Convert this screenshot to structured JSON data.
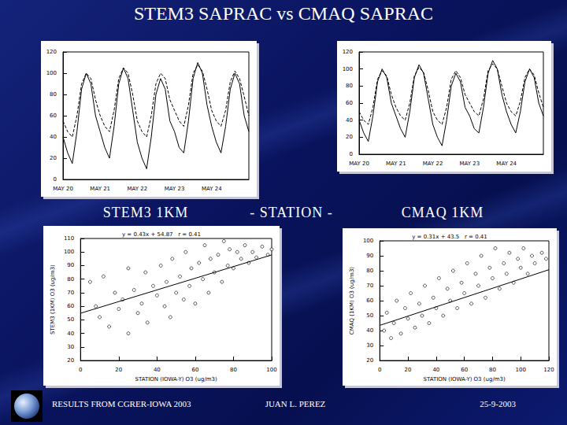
{
  "slide": {
    "title": "STEM3 SAPRAC vs CMAQ SAPRAC",
    "labels": [
      "STEM3 1KM",
      "- STATION -",
      "CMAQ 1KM"
    ],
    "footer": [
      "RESULTS FROM CGRER-IOWA 2003",
      "JUAN L. PEREZ",
      "25-9-2003"
    ]
  },
  "chart_data": [
    {
      "type": "line",
      "categories": [
        "MAY 20",
        null,
        null,
        null,
        null,
        null,
        null,
        null,
        "MAY 21",
        null,
        null,
        null,
        null,
        null,
        null,
        null,
        "MAY 22",
        null,
        null,
        null,
        null,
        null,
        null,
        null,
        "MAY 23",
        null,
        null,
        null,
        null,
        null,
        null,
        null,
        "MAY 24",
        null,
        null,
        null,
        null,
        null,
        null,
        null,
        null
      ],
      "series": [
        {
          "color": "#000000",
          "line_style": "solid",
          "values": [
            40,
            25,
            15,
            45,
            85,
            100,
            90,
            60,
            45,
            30,
            20,
            50,
            90,
            105,
            95,
            65,
            35,
            20,
            10,
            40,
            80,
            95,
            85,
            55,
            45,
            30,
            25,
            55,
            95,
            110,
            100,
            70,
            50,
            35,
            25,
            50,
            85,
            100,
            90,
            60,
            45
          ]
        },
        {
          "color": "#000000",
          "line_style": "dashed",
          "values": [
            55,
            45,
            40,
            60,
            90,
            100,
            95,
            75,
            60,
            50,
            45,
            65,
            95,
            105,
            100,
            80,
            55,
            45,
            40,
            60,
            90,
            100,
            95,
            75,
            65,
            55,
            50,
            70,
            100,
            108,
            102,
            85,
            65,
            55,
            50,
            65,
            92,
            102,
            95,
            78,
            60
          ]
        }
      ],
      "ylim": [
        0,
        120
      ],
      "yticks": [
        0,
        20,
        40,
        60,
        80,
        100,
        120
      ],
      "grid": false
    },
    {
      "type": "line",
      "categories": [
        "MAY 20",
        null,
        null,
        null,
        null,
        null,
        null,
        null,
        "MAY 21",
        null,
        null,
        null,
        null,
        null,
        null,
        null,
        "MAY 22",
        null,
        null,
        null,
        null,
        null,
        null,
        null,
        "MAY 23",
        null,
        null,
        null,
        null,
        null,
        null,
        null,
        "MAY 24",
        null,
        null,
        null,
        null,
        null,
        null,
        null,
        null
      ],
      "series": [
        {
          "color": "#000000",
          "line_style": "solid",
          "values": [
            40,
            25,
            15,
            45,
            85,
            100,
            90,
            60,
            45,
            30,
            20,
            50,
            90,
            105,
            95,
            65,
            35,
            20,
            10,
            40,
            80,
            95,
            85,
            55,
            45,
            30,
            25,
            55,
            95,
            110,
            100,
            70,
            50,
            35,
            25,
            50,
            85,
            100,
            90,
            60,
            45
          ]
        },
        {
          "color": "#000000",
          "line_style": "dashed",
          "values": [
            50,
            40,
            35,
            55,
            88,
            98,
            92,
            70,
            55,
            45,
            40,
            60,
            92,
            102,
            96,
            75,
            50,
            40,
            35,
            55,
            88,
            98,
            90,
            70,
            60,
            50,
            45,
            65,
            98,
            106,
            100,
            80,
            60,
            50,
            45,
            62,
            90,
            100,
            93,
            72,
            55
          ]
        }
      ],
      "ylim": [
        0,
        120
      ],
      "yticks": [
        0,
        20,
        40,
        60,
        80,
        100,
        120
      ],
      "grid": false
    },
    {
      "type": "scatter",
      "title": "y = 0.43x + 54.87   r = 0.41",
      "x_label": "STATION (IOWA-Y) O3 (ug/m3)",
      "y_label": "STEM3 (1KM) O3 (ug/m3)",
      "marker": "circle-open",
      "color": "#000000",
      "points": [
        [
          5,
          78
        ],
        [
          8,
          60
        ],
        [
          10,
          52
        ],
        [
          12,
          82
        ],
        [
          15,
          45
        ],
        [
          18,
          70
        ],
        [
          20,
          58
        ],
        [
          22,
          65
        ],
        [
          25,
          40
        ],
        [
          25,
          88
        ],
        [
          28,
          72
        ],
        [
          30,
          55
        ],
        [
          32,
          62
        ],
        [
          34,
          85
        ],
        [
          35,
          48
        ],
        [
          38,
          75
        ],
        [
          40,
          68
        ],
        [
          42,
          90
        ],
        [
          44,
          60
        ],
        [
          45,
          78
        ],
        [
          47,
          52
        ],
        [
          48,
          95
        ],
        [
          50,
          70
        ],
        [
          52,
          82
        ],
        [
          54,
          65
        ],
        [
          55,
          100
        ],
        [
          57,
          75
        ],
        [
          58,
          88
        ],
        [
          60,
          62
        ],
        [
          62,
          92
        ],
        [
          64,
          80
        ],
        [
          65,
          105
        ],
        [
          67,
          70
        ],
        [
          68,
          95
        ],
        [
          70,
          85
        ],
        [
          72,
          98
        ],
        [
          74,
          78
        ],
        [
          75,
          108
        ],
        [
          77,
          90
        ],
        [
          78,
          102
        ],
        [
          80,
          88
        ],
        [
          82,
          100
        ],
        [
          84,
          95
        ],
        [
          86,
          105
        ],
        [
          88,
          92
        ],
        [
          90,
          100
        ],
        [
          92,
          96
        ],
        [
          95,
          104
        ],
        [
          98,
          98
        ],
        [
          100,
          102
        ]
      ],
      "fit": {
        "slope": 0.43,
        "intercept": 54.87
      },
      "xlim": [
        0,
        100
      ],
      "xticks": [
        0,
        20,
        40,
        60,
        80,
        100
      ],
      "ylim": [
        20,
        110
      ],
      "yticks": [
        20,
        30,
        40,
        50,
        60,
        70,
        80,
        90,
        100,
        110
      ],
      "grid": false
    },
    {
      "type": "scatter",
      "title": "y = 0.31x + 43.5   r = 0.41",
      "x_label": "STATION (IOWA-Y) O3 (ug/m3)",
      "y_label": "CMAQ (1KM) O3 (ug/m3)",
      "marker": "circle-open",
      "color": "#000000",
      "points": [
        [
          3,
          40
        ],
        [
          5,
          52
        ],
        [
          8,
          35
        ],
        [
          10,
          45
        ],
        [
          12,
          60
        ],
        [
          15,
          38
        ],
        [
          18,
          55
        ],
        [
          20,
          48
        ],
        [
          22,
          65
        ],
        [
          25,
          42
        ],
        [
          28,
          58
        ],
        [
          30,
          50
        ],
        [
          32,
          70
        ],
        [
          35,
          45
        ],
        [
          38,
          62
        ],
        [
          40,
          55
        ],
        [
          42,
          75
        ],
        [
          45,
          50
        ],
        [
          48,
          68
        ],
        [
          50,
          60
        ],
        [
          52,
          80
        ],
        [
          55,
          55
        ],
        [
          58,
          72
        ],
        [
          60,
          65
        ],
        [
          62,
          85
        ],
        [
          65,
          58
        ],
        [
          68,
          78
        ],
        [
          70,
          70
        ],
        [
          72,
          90
        ],
        [
          75,
          62
        ],
        [
          78,
          82
        ],
        [
          80,
          75
        ],
        [
          82,
          95
        ],
        [
          85,
          68
        ],
        [
          88,
          85
        ],
        [
          90,
          78
        ],
        [
          92,
          92
        ],
        [
          95,
          72
        ],
        [
          98,
          88
        ],
        [
          100,
          82
        ],
        [
          102,
          95
        ],
        [
          105,
          78
        ],
        [
          108,
          90
        ],
        [
          110,
          85
        ],
        [
          115,
          92
        ],
        [
          118,
          88
        ]
      ],
      "fit": {
        "slope": 0.31,
        "intercept": 43.5
      },
      "xlim": [
        0,
        120
      ],
      "xticks": [
        0,
        20,
        40,
        60,
        80,
        100,
        120
      ],
      "ylim": [
        20,
        100
      ],
      "yticks": [
        20,
        30,
        40,
        50,
        60,
        70,
        80,
        90,
        100
      ],
      "grid": false
    }
  ]
}
